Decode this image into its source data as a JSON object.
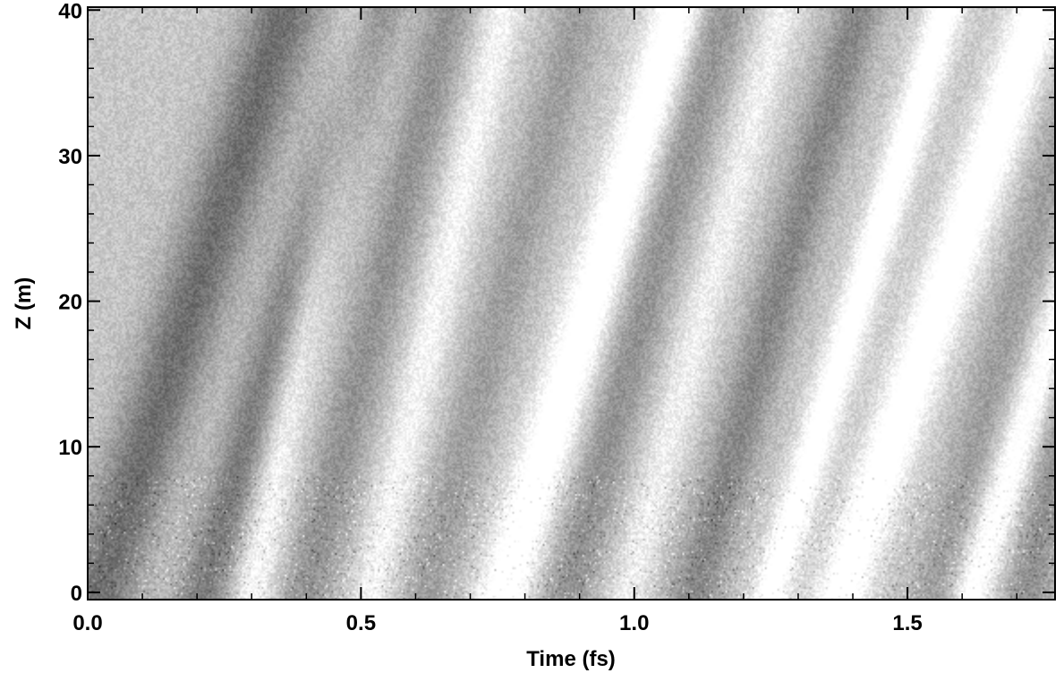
{
  "chart_data": {
    "type": "heatmap",
    "title": "",
    "xlabel": "Time (fs)",
    "ylabel": "Z (m)",
    "xlim": [
      0.0,
      1.77
    ],
    "ylim": [
      -0.5,
      40.2
    ],
    "xticks": [
      0.0,
      0.5,
      1.0,
      1.5
    ],
    "xtick_labels": [
      "0.0",
      "0.5",
      "1.0",
      "1.5"
    ],
    "yticks": [
      0,
      10,
      20,
      30,
      40
    ],
    "ytick_labels": [
      "0",
      "10",
      "20",
      "30",
      "40"
    ],
    "colormap": "grayscale",
    "grid": false,
    "legend": "none",
    "colors": {
      "dark": "#141414",
      "light": "#ffffff",
      "axis": "#000000"
    }
  }
}
